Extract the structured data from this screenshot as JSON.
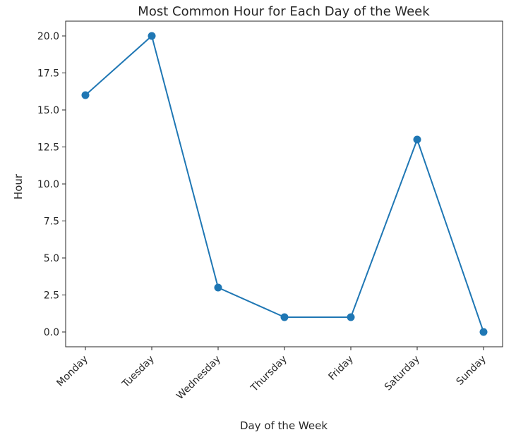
{
  "chart_data": {
    "type": "line",
    "title": "Most Common Hour for Each Day of the Week",
    "xlabel": "Day of the Week",
    "ylabel": "Hour",
    "categories": [
      "Monday",
      "Tuesday",
      "Wednesday",
      "Thursday",
      "Friday",
      "Saturday",
      "Sunday"
    ],
    "series": [
      {
        "values": [
          16,
          20,
          3,
          1,
          1,
          13,
          0
        ]
      }
    ],
    "ylim": [
      -1,
      21
    ],
    "yticks": [
      "0.0",
      "2.5",
      "5.0",
      "7.5",
      "10.0",
      "12.5",
      "15.0",
      "17.5",
      "20.0"
    ],
    "grid": false,
    "line_color": "#1f77b4",
    "marker": "circle"
  }
}
